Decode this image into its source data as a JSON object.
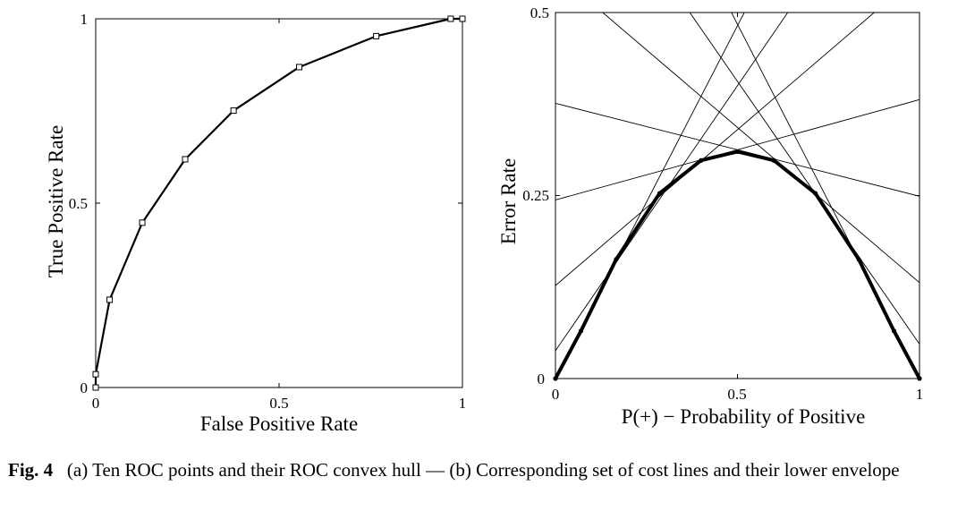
{
  "chart_data": [
    {
      "type": "line",
      "panel": "a",
      "xlabel": "False Positive Rate",
      "ylabel": "True Positive Rate",
      "xlim": [
        0,
        1
      ],
      "ylim": [
        0,
        1
      ],
      "xticks": [
        0,
        0.5,
        1
      ],
      "xtick_labels": [
        "0",
        "0.5",
        "1"
      ],
      "yticks": [
        0,
        0.5,
        1
      ],
      "ytick_labels": [
        "0",
        "0.5",
        "1"
      ],
      "grid": false,
      "series": [
        {
          "marker": "square",
          "points": [
            [
              0,
              0
            ],
            [
              0,
              0.036
            ],
            [
              0.038,
              0.238
            ],
            [
              0.127,
              0.447
            ],
            [
              0.244,
              0.619
            ],
            [
              0.376,
              0.751
            ],
            [
              0.555,
              0.869
            ],
            [
              0.765,
              0.953
            ],
            [
              0.968,
              1.0
            ],
            [
              1.0,
              1.0
            ]
          ]
        }
      ]
    },
    {
      "type": "line",
      "panel": "b",
      "xlabel": "P(+) − Probability of Positive",
      "ylabel": "Error Rate",
      "xlim": [
        0,
        1
      ],
      "ylim": [
        0,
        0.5
      ],
      "xticks": [
        0,
        0.5,
        1
      ],
      "xtick_labels": [
        "0",
        "0.5",
        "1"
      ],
      "yticks": [
        0,
        0.25,
        0.5
      ],
      "ytick_labels": [
        "0",
        "0.25",
        "0.5"
      ],
      "grid": false,
      "cost_lines": [
        {
          "fp": 0.0,
          "fn": 0.964
        },
        {
          "fp": 0.038,
          "fn": 0.762
        },
        {
          "fp": 0.127,
          "fn": 0.553
        },
        {
          "fp": 0.244,
          "fn": 0.381
        },
        {
          "fp": 0.376,
          "fn": 0.249
        },
        {
          "fp": 0.555,
          "fn": 0.131
        },
        {
          "fp": 0.765,
          "fn": 0.047
        },
        {
          "fp": 0.968,
          "fn": 0.0
        }
      ],
      "lower_envelope": {
        "x": [
          0,
          0.07,
          0.167,
          0.286,
          0.4,
          0.5,
          0.6,
          0.714,
          0.833,
          0.93,
          1.0
        ],
        "y": [
          0,
          0.065,
          0.163,
          0.253,
          0.298,
          0.31,
          0.298,
          0.253,
          0.163,
          0.065,
          0
        ]
      }
    }
  ],
  "caption": {
    "label": "Fig. 4",
    "text": "(a) Ten ROC points and their ROC convex hull — (b) Corresponding set of cost lines and their lower envelope"
  }
}
